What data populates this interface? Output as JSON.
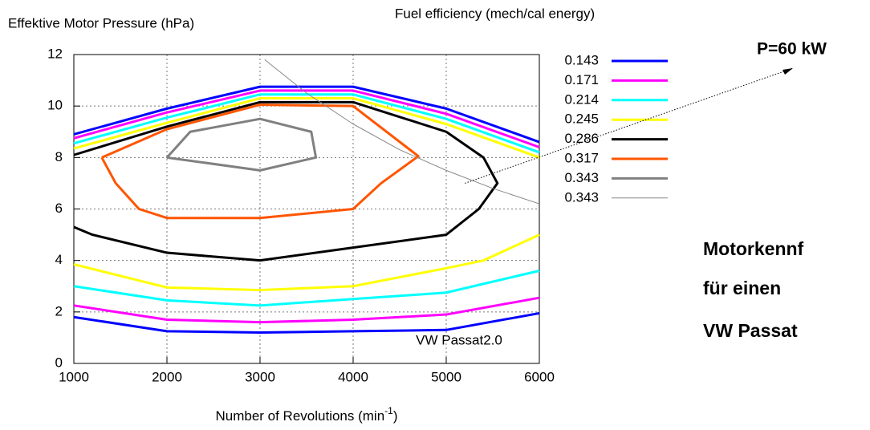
{
  "chart_data": {
    "type": "line",
    "ylabel": "Effektive Motor Pressure (hPa)",
    "legend_title": "Fuel efficiency (mech/cal energy)",
    "xlabel": {
      "text": "Number of Revolutions (min",
      "sup": "-1",
      "close": ")"
    },
    "xlim": [
      1000,
      6000
    ],
    "xticks": [
      1000,
      2000,
      3000,
      4000,
      5000,
      6000
    ],
    "ylim": [
      0,
      12
    ],
    "yticks": [
      0,
      2,
      4,
      6,
      8,
      10,
      12
    ],
    "grid": true,
    "legend": "right",
    "annotations": [
      "VW Passat2.0",
      "P=60 kW",
      "Motorkennf",
      "für einen",
      "VW Passat"
    ],
    "series": [
      {
        "name": "0.143",
        "color": "#0000ff",
        "linewidth": 3,
        "x": [
          1000,
          2000,
          3000,
          4000,
          5000,
          6000,
          null,
          1000,
          2000,
          3000,
          4000,
          5000,
          6000
        ],
        "values": [
          8.9,
          9.9,
          10.75,
          10.75,
          9.9,
          8.6,
          null,
          1.8,
          1.25,
          1.2,
          1.25,
          1.3,
          1.95
        ]
      },
      {
        "name": "0.171",
        "color": "#ff00ff",
        "linewidth": 3,
        "x": [
          1000,
          2000,
          3000,
          4000,
          5000,
          6000,
          null,
          1000,
          2000,
          3000,
          4000,
          5000,
          6000
        ],
        "values": [
          8.75,
          9.75,
          10.6,
          10.6,
          9.7,
          8.4,
          null,
          2.25,
          1.7,
          1.6,
          1.7,
          1.9,
          2.55
        ]
      },
      {
        "name": "0.214",
        "color": "#00ffff",
        "linewidth": 3,
        "x": [
          1000,
          2000,
          3000,
          4000,
          5000,
          6000,
          null,
          1000,
          2000,
          3000,
          4000,
          5000,
          6000
        ],
        "values": [
          8.55,
          9.55,
          10.45,
          10.45,
          9.5,
          8.2,
          null,
          3.0,
          2.45,
          2.25,
          2.5,
          2.75,
          3.6
        ]
      },
      {
        "name": "0.245",
        "color": "#ffff00",
        "linewidth": 3,
        "x": [
          1000,
          2000,
          3000,
          4000,
          5000,
          6000,
          null,
          1000,
          2000,
          3000,
          4000,
          5000,
          5400,
          6000
        ],
        "values": [
          8.35,
          9.35,
          10.3,
          10.3,
          9.3,
          8.0,
          null,
          3.85,
          2.95,
          2.85,
          3.0,
          3.7,
          4.0,
          5.0
        ]
      },
      {
        "name": "0.286",
        "color": "#000000",
        "linewidth": 3,
        "x": [
          1000,
          2000,
          3000,
          4000,
          5000,
          5400,
          5550,
          5350,
          5000,
          4000,
          3000,
          2000,
          1200,
          1000
        ],
        "values": [
          8.1,
          9.2,
          10.15,
          10.15,
          9.0,
          8.0,
          7.0,
          6.0,
          5.0,
          4.5,
          4.0,
          4.3,
          5.0,
          5.3
        ]
      },
      {
        "name": "0.317",
        "color": "#ff5500",
        "linewidth": 3,
        "x": [
          1300,
          2000,
          3000,
          4000,
          4700,
          4300,
          4000,
          3000,
          2000,
          1700,
          1450,
          1300
        ],
        "values": [
          8.0,
          9.1,
          10.05,
          10.0,
          8.05,
          7.0,
          6.0,
          5.65,
          5.65,
          6.0,
          7.0,
          8.0
        ]
      },
      {
        "name": "0.343",
        "color": "#808080",
        "linewidth": 3,
        "x": [
          2000,
          2250,
          3000,
          3550,
          3600,
          3000,
          2000
        ],
        "values": [
          8.0,
          9.0,
          9.5,
          9.0,
          8.0,
          7.5,
          8.0
        ]
      },
      {
        "name": "0.343",
        "color": "#888888",
        "linewidth": 1,
        "x": [
          3050,
          3500,
          4000,
          4500,
          5000,
          5500,
          6000
        ],
        "values": [
          11.8,
          10.5,
          9.3,
          8.3,
          7.5,
          6.8,
          6.2
        ]
      }
    ]
  }
}
